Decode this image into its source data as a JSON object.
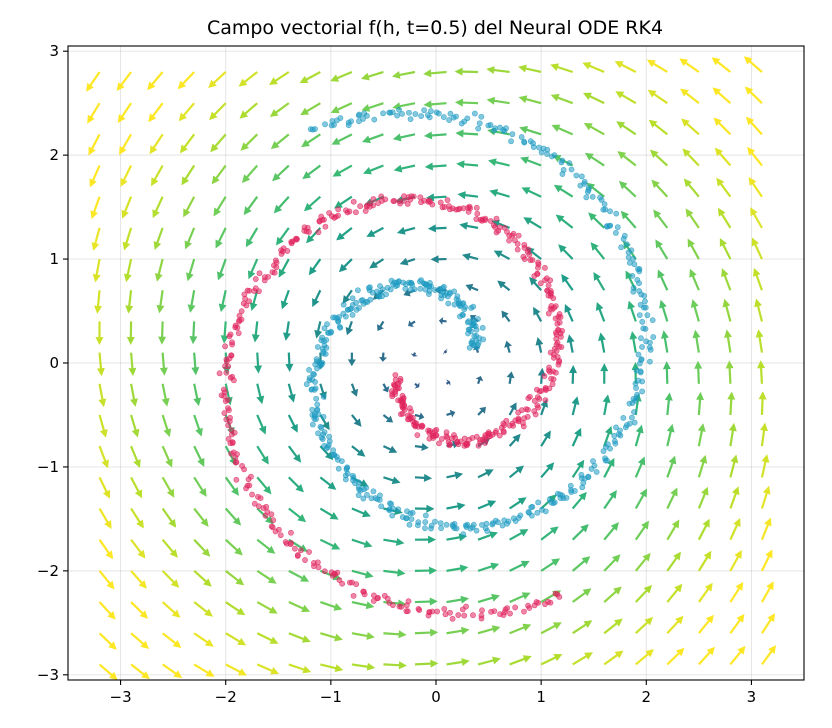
{
  "chart_data": {
    "type": "scatter",
    "title": "Campo vectorial f(h, t=0.5) del Neural ODE RK4",
    "xlabel": "",
    "ylabel": "",
    "xlim": [
      -3.5,
      3.5
    ],
    "ylim": [
      -3.05,
      3.05
    ],
    "xticks": [
      -3,
      -2,
      -1,
      0,
      1,
      2,
      3
    ],
    "yticks": [
      -3,
      -2,
      -1,
      0,
      1,
      2,
      3
    ],
    "xtick_labels": [
      "−3",
      "−2",
      "−1",
      "0",
      "1",
      "2",
      "3"
    ],
    "ytick_labels": [
      "−3",
      "−2",
      "−1",
      "0",
      "1",
      "2",
      "3"
    ],
    "grid": true,
    "legend": "none",
    "quiver": {
      "grid_x": [
        -3.2,
        -2.9,
        -2.6,
        -2.3,
        -2.0,
        -1.7,
        -1.4,
        -1.1,
        -0.8,
        -0.5,
        -0.2,
        0.1,
        0.4,
        0.7,
        1.0,
        1.3,
        1.6,
        1.9,
        2.2,
        2.5,
        2.8,
        3.1
      ],
      "grid_y": [
        -2.9,
        -2.6,
        -2.3,
        -2.0,
        -1.7,
        -1.4,
        -1.1,
        -0.8,
        -0.5,
        -0.2,
        0.1,
        0.4,
        0.7,
        1.0,
        1.3,
        1.6,
        1.9,
        2.2,
        2.5,
        2.8
      ],
      "field": "rotational (counter-clockwise), magnitude increasing with radius",
      "colormap": "viridis"
    },
    "series": [
      {
        "color": "#1f9bc2",
        "arm_offset": 0,
        "points_count": 500
      },
      {
        "color": "#e0245e",
        "arm_offset": 3.1416,
        "points_count": 500
      }
    ]
  }
}
